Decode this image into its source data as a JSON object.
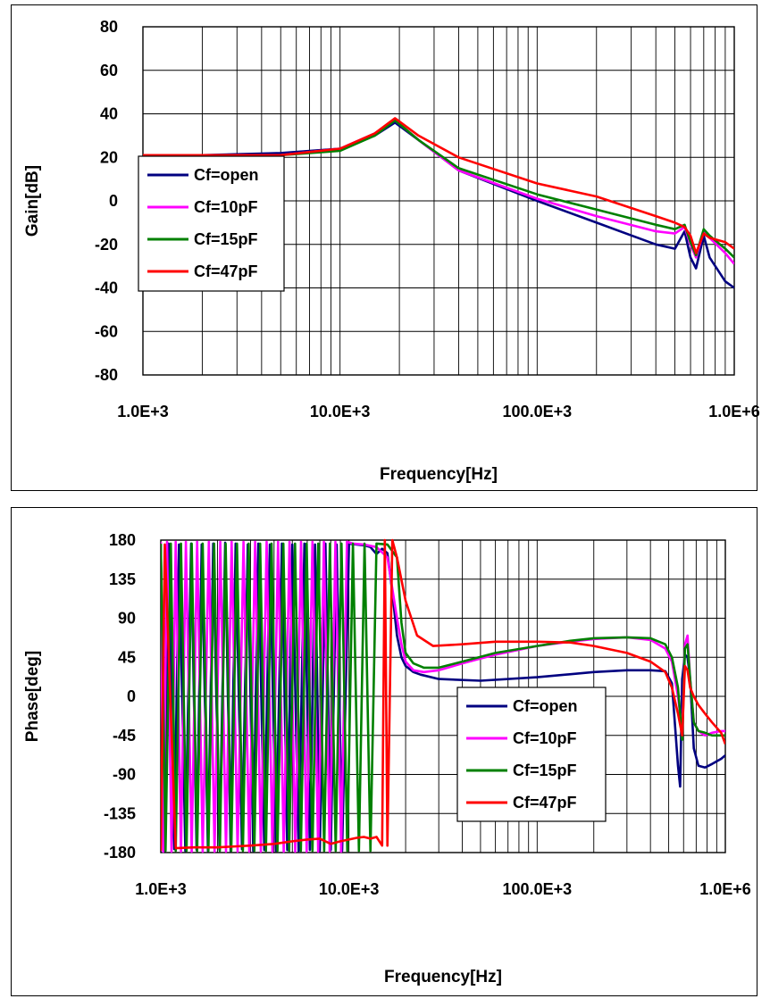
{
  "chart_data": [
    {
      "type": "line",
      "xscale": "log",
      "xlim": [
        1000,
        1000000
      ],
      "ylim": [
        -80,
        80
      ],
      "xlabel": "Frequency[Hz]",
      "ylabel": "Gain[dB]",
      "x_tick_values": [
        1000,
        10000,
        100000,
        1000000
      ],
      "x_tick_labels": [
        "1.0E+3",
        "10.0E+3",
        "100.0E+3",
        "1.0E+6"
      ],
      "y_ticks": [
        80,
        60,
        40,
        20,
        0,
        -20,
        -40,
        -60,
        -80
      ],
      "grid": true,
      "legend": "left",
      "series": [
        {
          "name": "Cf=open",
          "color": "#000080",
          "x": [
            1000,
            2000,
            5000,
            10000,
            15000,
            19000,
            25000,
            40000,
            100000,
            200000,
            400000,
            500000,
            560000,
            600000,
            640000,
            700000,
            750000,
            900000,
            1000000
          ],
          "y": [
            21,
            21,
            22,
            24,
            30,
            36,
            28,
            14,
            0,
            -10,
            -20,
            -22,
            -14,
            -26,
            -31,
            -16,
            -26,
            -37,
            -40
          ]
        },
        {
          "name": "Cf=10pF",
          "color": "#FF00FF",
          "x": [
            1000,
            2000,
            5000,
            10000,
            15000,
            19000,
            25000,
            40000,
            100000,
            200000,
            400000,
            500000,
            560000,
            600000,
            640000,
            700000,
            750000,
            900000,
            1000000
          ],
          "y": [
            21,
            21,
            21,
            24,
            31,
            37,
            28,
            14,
            1,
            -7,
            -14,
            -15,
            -12,
            -20,
            -26,
            -14,
            -17,
            -24,
            -29
          ]
        },
        {
          "name": "Cf=15pF",
          "color": "#008000",
          "x": [
            1000,
            2000,
            5000,
            10000,
            15000,
            19000,
            25000,
            40000,
            100000,
            200000,
            400000,
            500000,
            560000,
            600000,
            640000,
            700000,
            750000,
            900000,
            1000000
          ],
          "y": [
            21,
            21,
            21,
            23,
            30,
            37,
            28,
            15,
            3,
            -4,
            -11,
            -13,
            -11,
            -19,
            -25,
            -13,
            -16,
            -22,
            -26
          ]
        },
        {
          "name": "Cf=47pF",
          "color": "#FF0000",
          "x": [
            1000,
            2000,
            5000,
            10000,
            15000,
            19000,
            25000,
            40000,
            100000,
            200000,
            400000,
            500000,
            560000,
            600000,
            640000,
            700000,
            750000,
            900000,
            1000000
          ],
          "y": [
            21,
            21,
            21,
            24,
            31,
            38,
            30,
            20,
            8,
            2,
            -7,
            -10,
            -12,
            -16,
            -24,
            -15,
            -17,
            -19,
            -22
          ]
        }
      ]
    },
    {
      "type": "line",
      "xscale": "log",
      "xlim": [
        1000,
        1000000
      ],
      "ylim": [
        -180,
        180
      ],
      "xlabel": "Frequency[Hz]",
      "ylabel": "Phase[deg]",
      "x_tick_values": [
        1000,
        10000,
        100000,
        1000000
      ],
      "x_tick_labels": [
        "1.0E+3",
        "10.0E+3",
        "100.0E+3",
        "1.0E+6"
      ],
      "y_ticks": [
        180,
        135,
        90,
        45,
        0,
        -45,
        -90,
        -135,
        -180
      ],
      "grid": true,
      "legend": "center-right",
      "series": [
        {
          "name": "Cf=open",
          "color": "#000080",
          "x": [
            1000,
            1050,
            1100,
            1180,
            1250,
            1350,
            1450,
            1550,
            1650,
            1780,
            1900,
            2050,
            2200,
            2350,
            2500,
            2700,
            2900,
            3100,
            3300,
            3550,
            3800,
            4100,
            4400,
            4700,
            5000,
            5400,
            5800,
            6200,
            6600,
            7000,
            7500,
            8000,
            8600,
            9200,
            10000,
            11000,
            12000,
            13000,
            14000,
            15000,
            16000,
            17000,
            18000,
            19000,
            20000,
            22000,
            24000,
            30000,
            50000,
            100000,
            200000,
            300000,
            400000,
            480000,
            520000,
            560000,
            575000,
            590000,
            610000,
            630000,
            650000,
            680000,
            720000,
            780000,
            850000,
            950000,
            1000000
          ],
          "y": [
            175,
            -178,
            176,
            -176,
            175,
            -178,
            176,
            -177,
            175,
            -178,
            176,
            -177,
            177,
            -178,
            176,
            -176,
            175,
            -178,
            176,
            -177,
            175,
            -178,
            176,
            -177,
            175,
            -178,
            176,
            -177,
            175,
            -178,
            176,
            -177,
            175,
            -178,
            176,
            175,
            174,
            172,
            164,
            170,
            165,
            120,
            70,
            45,
            35,
            28,
            25,
            20,
            18,
            22,
            28,
            30,
            30,
            29,
            15,
            -80,
            -104,
            20,
            48,
            45,
            20,
            -60,
            -80,
            -82,
            -78,
            -72,
            -68
          ]
        },
        {
          "name": "Cf=10pF",
          "color": "#FF00FF",
          "x": [
            1000,
            1030,
            1080,
            1140,
            1200,
            1280,
            1360,
            1460,
            1560,
            1670,
            1800,
            1930,
            2070,
            2220,
            2380,
            2560,
            2750,
            2950,
            3170,
            3400,
            3650,
            3920,
            4200,
            4500,
            4830,
            5180,
            5560,
            5960,
            6400,
            6860,
            7360,
            7900,
            8470,
            9090,
            9750,
            10500,
            12000,
            14000,
            16000,
            18000,
            19000,
            20000,
            22000,
            25000,
            30000,
            40000,
            60000,
            100000,
            150000,
            200000,
            300000,
            400000,
            480000,
            520000,
            560000,
            590000,
            610000,
            630000,
            650000,
            680000,
            720000,
            780000,
            850000,
            950000,
            1000000
          ],
          "y": [
            178,
            -179,
            178,
            -179,
            178,
            -179,
            178,
            -179,
            178,
            -179,
            178,
            -179,
            178,
            -179,
            178,
            -179,
            178,
            -179,
            178,
            -179,
            178,
            -179,
            178,
            -179,
            178,
            -179,
            178,
            -179,
            178,
            -179,
            178,
            -179,
            178,
            -179,
            178,
            176,
            175,
            172,
            160,
            90,
            60,
            40,
            30,
            28,
            30,
            38,
            48,
            58,
            63,
            66,
            68,
            65,
            55,
            40,
            0,
            -40,
            60,
            70,
            20,
            -30,
            -40,
            -45,
            -42,
            -40,
            -40
          ]
        },
        {
          "name": "Cf=15pF",
          "color": "#008000",
          "x": [
            1000,
            1060,
            1130,
            1200,
            1280,
            1370,
            1460,
            1560,
            1670,
            1790,
            1920,
            2060,
            2210,
            2370,
            2540,
            2730,
            2930,
            3140,
            3370,
            3620,
            3880,
            4170,
            4480,
            4810,
            5170,
            5550,
            5960,
            6400,
            6870,
            7380,
            7920,
            8500,
            9130,
            9800,
            10500,
            11300,
            12100,
            13000,
            14000,
            16000,
            18000,
            19000,
            20000,
            22000,
            25000,
            30000,
            40000,
            60000,
            100000,
            150000,
            200000,
            300000,
            400000,
            480000,
            520000,
            560000,
            590000,
            610000,
            630000,
            650000,
            680000,
            720000,
            780000,
            850000,
            950000,
            1000000
          ],
          "y": [
            176,
            -178,
            176,
            -178,
            176,
            -178,
            176,
            -178,
            176,
            -178,
            176,
            -178,
            176,
            -178,
            176,
            -178,
            176,
            -178,
            176,
            -178,
            176,
            -178,
            176,
            -178,
            176,
            -178,
            176,
            -178,
            176,
            -178,
            176,
            -178,
            176,
            -178,
            176,
            -178,
            176,
            -178,
            176,
            175,
            160,
            85,
            50,
            38,
            33,
            33,
            40,
            50,
            58,
            64,
            67,
            68,
            67,
            60,
            45,
            10,
            -50,
            55,
            60,
            20,
            -30,
            -40,
            -42,
            -45,
            -45,
            -45
          ]
        },
        {
          "name": "Cf=47pF",
          "color": "#FF0000",
          "x": [
            1000,
            1050,
            1200,
            1500,
            2000,
            3000,
            4000,
            5000,
            6000,
            7000,
            8000,
            9000,
            10000,
            11000,
            12000,
            13000,
            14000,
            15000,
            15500,
            16000,
            17000,
            18000,
            20000,
            23000,
            28000,
            40000,
            60000,
            100000,
            150000,
            200000,
            300000,
            400000,
            480000,
            520000,
            560000,
            590000,
            610000,
            630000,
            650000,
            680000,
            720000,
            780000,
            850000,
            950000,
            1000000
          ],
          "y": [
            -178,
            175,
            -175,
            -174,
            -174,
            -172,
            -170,
            -167,
            -165,
            -164,
            -170,
            -167,
            -165,
            -163,
            -162,
            -164,
            -162,
            -172,
            180,
            -172,
            180,
            160,
            110,
            70,
            58,
            60,
            63,
            63,
            62,
            58,
            50,
            40,
            28,
            10,
            -20,
            -45,
            35,
            30,
            10,
            0,
            -10,
            -20,
            -30,
            -42,
            -55
          ]
        }
      ]
    }
  ]
}
